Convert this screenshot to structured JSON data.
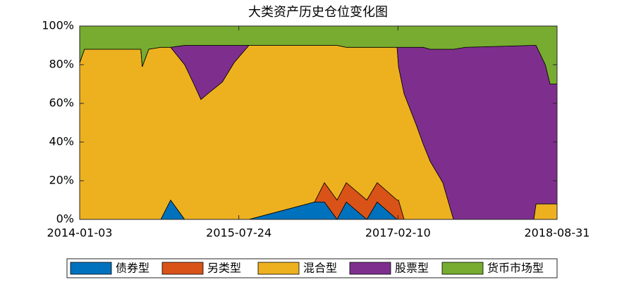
{
  "chart_data": {
    "type": "stacked-area",
    "title": "大类资产历史仓位变化图",
    "x": [
      "2014-01-03",
      "2014-01-20",
      "2014-08-09",
      "2014-08-14",
      "2014-09-06",
      "2014-10-19",
      "2014-11-23",
      "2015-01-12",
      "2015-02-14",
      "2015-03-11",
      "2015-04-13",
      "2015-05-26",
      "2015-07-07",
      "2015-08-29",
      "2016-04-19",
      "2016-05-24",
      "2016-07-08",
      "2016-08-10",
      "2016-10-22",
      "2016-11-28",
      "2017-02-07",
      "2017-02-12",
      "2017-03-04",
      "2017-04-16",
      "2017-05-11",
      "2017-06-05",
      "2017-07-20",
      "2017-08-27",
      "2017-10-09",
      "2018-06-09",
      "2018-06-17",
      "2018-07-20",
      "2018-08-06",
      "2018-08-31"
    ],
    "series": [
      {
        "name": "债券型",
        "color": "#0072bd",
        "values": [
          0,
          0,
          0,
          0,
          0,
          0,
          10,
          0,
          0,
          0,
          0,
          0,
          0,
          0,
          9,
          9,
          0,
          9,
          0,
          9,
          0,
          0,
          0,
          0,
          0,
          0,
          0,
          0,
          0,
          0,
          0,
          0,
          0,
          0
        ]
      },
      {
        "name": "另类型",
        "color": "#d95319",
        "values": [
          0,
          0,
          0,
          0,
          0,
          0,
          0,
          0,
          0,
          0,
          0,
          0,
          0,
          0,
          0,
          10,
          10,
          10,
          10,
          10,
          10,
          10,
          0,
          0,
          0,
          0,
          0,
          0,
          0,
          0,
          0,
          0,
          0,
          0
        ]
      },
      {
        "name": "混合型",
        "color": "#edb120",
        "values": [
          81,
          88,
          88,
          79,
          88,
          89,
          79,
          80,
          70,
          62,
          66,
          71,
          81,
          90,
          81,
          71,
          80,
          70,
          79,
          70,
          79,
          69,
          65,
          49,
          39,
          30,
          19,
          0,
          0,
          0,
          8,
          8,
          8,
          8
        ]
      },
      {
        "name": "股票型",
        "color": "#7e2f8e",
        "values": [
          0,
          0,
          0,
          0,
          0,
          0,
          0,
          10,
          20,
          28,
          24,
          19,
          9,
          0,
          0,
          0,
          0,
          0,
          0,
          0,
          0,
          10,
          24,
          40,
          50,
          58,
          69,
          88,
          89,
          90,
          82,
          72,
          62,
          62
        ]
      },
      {
        "name": "货币市场型",
        "color": "#77ac30",
        "values": [
          19,
          12,
          12,
          21,
          12,
          11,
          11,
          10,
          10,
          10,
          10,
          10,
          10,
          10,
          10,
          10,
          10,
          11,
          11,
          11,
          11,
          11,
          11,
          11,
          11,
          12,
          12,
          12,
          11,
          10,
          10,
          20,
          30,
          30
        ]
      }
    ],
    "xlim": [
      "2014-01-03",
      "2018-08-31"
    ],
    "xticks": [
      "2014-01-03",
      "2015-07-24",
      "2017-02-10",
      "2018-08-31"
    ],
    "ylim": [
      0,
      100
    ],
    "yticks": [
      {
        "value": 0,
        "label": "0%"
      },
      {
        "value": 20,
        "label": "20%"
      },
      {
        "value": 40,
        "label": "40%"
      },
      {
        "value": 60,
        "label": "60%"
      },
      {
        "value": 80,
        "label": "80%"
      },
      {
        "value": 100,
        "label": "100%"
      }
    ],
    "legend": "bottom"
  }
}
